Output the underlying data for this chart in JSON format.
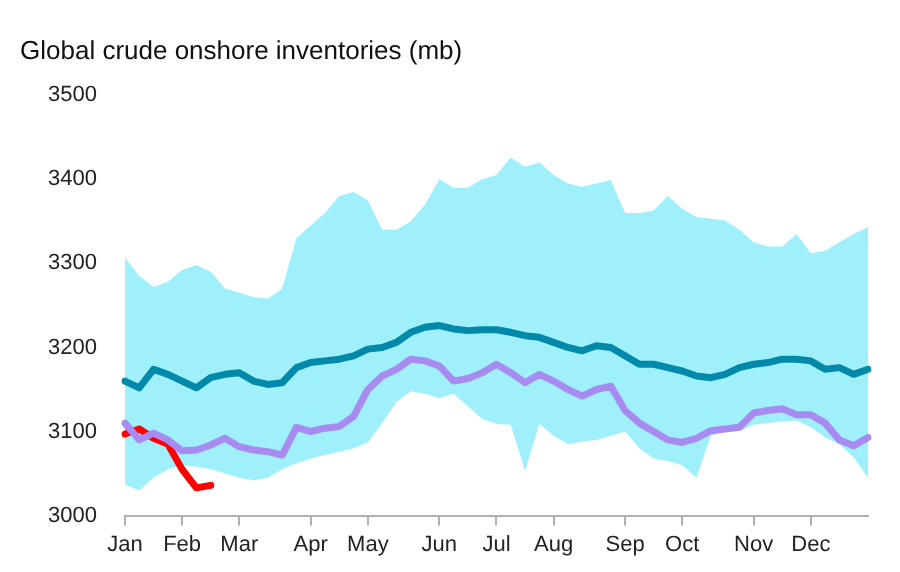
{
  "chart_data": {
    "type": "line",
    "title": "Global crude onshore inventories (mb)",
    "marker": "none",
    "grid": false,
    "categories": [
      "Jan",
      null,
      null,
      null,
      "Feb",
      null,
      null,
      null,
      "Mar",
      null,
      null,
      null,
      null,
      "Apr",
      null,
      null,
      null,
      "May",
      null,
      null,
      null,
      null,
      "Jun",
      null,
      null,
      null,
      "Jul",
      null,
      null,
      null,
      "Aug",
      null,
      null,
      null,
      null,
      "Sep",
      null,
      null,
      null,
      "Oct",
      null,
      null,
      null,
      null,
      "Nov",
      null,
      null,
      null,
      "Dec",
      null,
      null,
      null,
      null
    ],
    "ylim": [
      3000,
      3500
    ],
    "yticks": [
      3000,
      3100,
      3200,
      3300,
      3400,
      3500
    ],
    "series": [
      {
        "color": "#0089a8",
        "values": [
          3160,
          3152,
          3174,
          3168,
          3160,
          3152,
          3164,
          3168,
          3170,
          3160,
          3156,
          3158,
          3176,
          3182,
          3184,
          3186,
          3190,
          3198,
          3200,
          3206,
          3218,
          3224,
          3226,
          3222,
          3220,
          3221,
          3221,
          3218,
          3214,
          3212,
          3206,
          3200,
          3196,
          3202,
          3200,
          3190,
          3180,
          3180,
          3176,
          3172,
          3166,
          3164,
          3168,
          3176,
          3180,
          3182,
          3186,
          3186,
          3184,
          3174,
          3176,
          3168,
          3174
        ],
        "lower": [
          3037,
          3030,
          3045,
          3055,
          3060,
          3058,
          3055,
          3050,
          3045,
          3042,
          3045,
          3055,
          3062,
          3068,
          3072,
          3076,
          3080,
          3087,
          3110,
          3135,
          3148,
          3145,
          3140,
          3145,
          3130,
          3115,
          3109,
          3108,
          3053,
          3109,
          3095,
          3085,
          3088,
          3090,
          3095,
          3100,
          3080,
          3068,
          3065,
          3060,
          3045,
          3095,
          3100,
          3101,
          3108,
          3110,
          3112,
          3113,
          3105,
          3093,
          3085,
          3069,
          3045
        ],
        "upper": [
          3307,
          3285,
          3272,
          3278,
          3292,
          3298,
          3290,
          3270,
          3265,
          3260,
          3258,
          3270,
          3330,
          3345,
          3360,
          3380,
          3385,
          3375,
          3340,
          3340,
          3350,
          3370,
          3400,
          3390,
          3390,
          3400,
          3405,
          3426,
          3415,
          3420,
          3405,
          3395,
          3391,
          3395,
          3399,
          3360,
          3360,
          3363,
          3380,
          3365,
          3355,
          3353,
          3351,
          3340,
          3325,
          3320,
          3320,
          3335,
          3312,
          3315,
          3325,
          3335,
          3343
        ]
      },
      {
        "color": "#a78bf0",
        "values": [
          3110,
          3090,
          3098,
          3090,
          3077,
          3078,
          3084,
          3092,
          3082,
          3078,
          3076,
          3072,
          3105,
          3100,
          3104,
          3106,
          3118,
          3150,
          3166,
          3174,
          3186,
          3184,
          3178,
          3160,
          3163,
          3170,
          3180,
          3170,
          3158,
          3168,
          3160,
          3150,
          3142,
          3150,
          3154,
          3125,
          3110,
          3100,
          3090,
          3087,
          3092,
          3101,
          3103,
          3105,
          3122,
          3125,
          3127,
          3120,
          3120,
          3110,
          3090,
          3083,
          3093
        ]
      },
      {
        "color": "#ff0000",
        "values": [
          3097,
          3103,
          3092,
          3085,
          3055,
          3033,
          3036,
          null,
          null,
          null,
          null,
          null,
          null,
          null,
          null,
          null,
          null,
          null,
          null,
          null,
          null,
          null,
          null,
          null,
          null,
          null,
          null,
          null,
          null,
          null,
          null,
          null,
          null,
          null,
          null,
          null,
          null,
          null,
          null,
          null,
          null,
          null,
          null,
          null,
          null,
          null,
          null,
          null,
          null,
          null,
          null,
          null,
          null
        ]
      }
    ]
  }
}
